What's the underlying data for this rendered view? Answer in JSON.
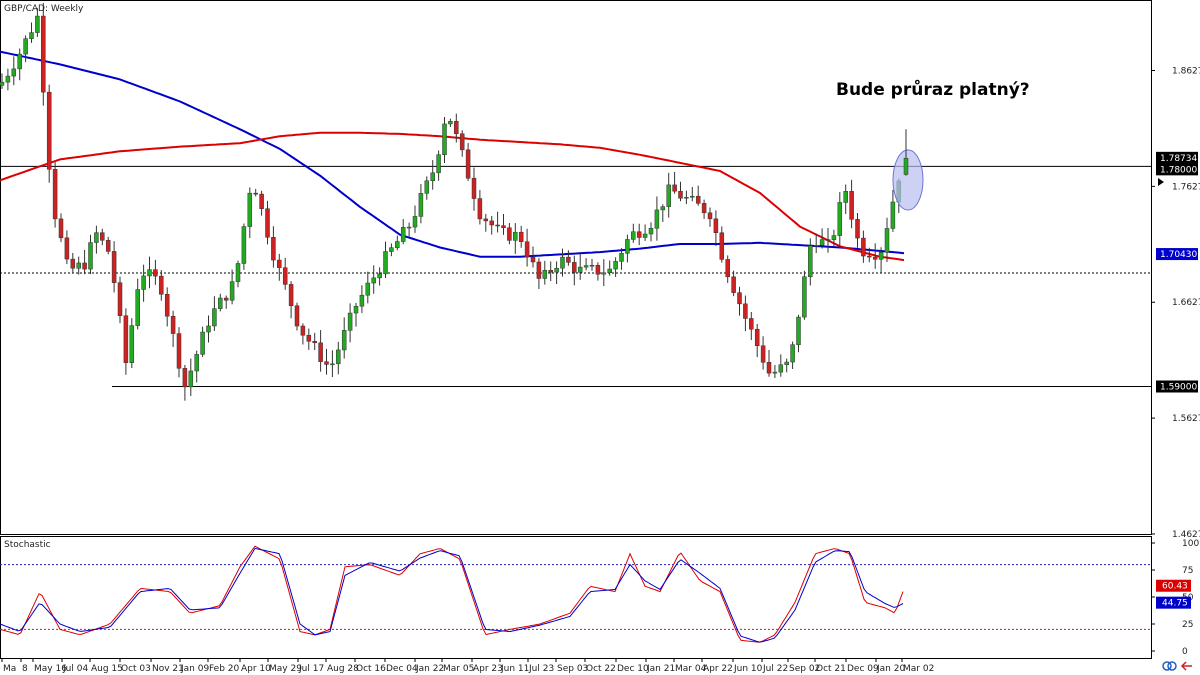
{
  "chart_data": [
    {
      "type": "candlestick",
      "title": "GBP/CAD: Weekly",
      "annotation": "Bude průraz platný?",
      "ylim": [
        1.4627,
        1.9227
      ],
      "y_ticks": [
        "1.86272",
        "1.76272",
        "1.66272",
        "1.56272",
        "1.46272"
      ],
      "x_ticks": [
        "Ma",
        "8",
        "May 16",
        "Jul 04",
        "Aug 15",
        "Oct 03",
        "Nov 21",
        "Jan 09",
        "Feb 20",
        "Apr 10",
        "May 29",
        "Jul 17",
        "Aug 28",
        "Oct 16",
        "Dec 04",
        "Jan 22",
        "Mar 05",
        "Apr 23",
        "Jun 11",
        "Jul 23",
        "Sep 03",
        "Oct 22",
        "Dec 10",
        "Jan 21",
        "Mar 04",
        "Apr 22",
        "Jun 10",
        "Jul 22",
        "Sep 02",
        "Oct 21",
        "Dec 09",
        "Jan 20",
        "Mar 02"
      ],
      "levels": [
        {
          "value": 1.78,
          "label": "1.78000",
          "style": "solid"
        },
        {
          "value": 1.688,
          "label": "",
          "style": "dotted"
        },
        {
          "value": 1.59,
          "label": "1.59000",
          "style": "solid"
        }
      ],
      "price_tags": [
        {
          "value": 1.78734,
          "label": "1.78734",
          "color": "#000000"
        },
        {
          "value": 1.78,
          "label": "1.78000",
          "color": "#000000"
        },
        {
          "value": 1.7043,
          "label": "1.70430",
          "color": "#0000cc"
        },
        {
          "value": 1.59,
          "label": "1.59000",
          "color": "#000000"
        }
      ],
      "series": [
        {
          "name": "",
          "color": "#0000cc",
          "anchors": [
            [
              0,
              1.879
            ],
            [
              60,
              1.868
            ],
            [
              120,
              1.855
            ],
            [
              180,
              1.836
            ],
            [
              240,
              1.812
            ],
            [
              280,
              1.795
            ],
            [
              320,
              1.772
            ],
            [
              360,
              1.745
            ],
            [
              400,
              1.721
            ],
            [
              440,
              1.71
            ],
            [
              480,
              1.702
            ],
            [
              520,
              1.702
            ],
            [
              560,
              1.704
            ],
            [
              600,
              1.706
            ],
            [
              640,
              1.709
            ],
            [
              680,
              1.713
            ],
            [
              720,
              1.713
            ],
            [
              760,
              1.714
            ],
            [
              800,
              1.712
            ],
            [
              840,
              1.71
            ],
            [
              880,
              1.707
            ],
            [
              905,
              1.705
            ]
          ]
        },
        {
          "name": "",
          "color": "#dd0000",
          "anchors": [
            [
              0,
              1.768
            ],
            [
              60,
              1.786
            ],
            [
              120,
              1.793
            ],
            [
              180,
              1.797
            ],
            [
              240,
              1.8
            ],
            [
              280,
              1.806
            ],
            [
              320,
              1.809
            ],
            [
              360,
              1.809
            ],
            [
              400,
              1.808
            ],
            [
              440,
              1.806
            ],
            [
              480,
              1.803
            ],
            [
              520,
              1.801
            ],
            [
              560,
              1.799
            ],
            [
              600,
              1.796
            ],
            [
              640,
              1.79
            ],
            [
              680,
              1.783
            ],
            [
              720,
              1.776
            ],
            [
              760,
              1.757
            ],
            [
              800,
              1.728
            ],
            [
              840,
              1.711
            ],
            [
              880,
              1.702
            ],
            [
              905,
              1.699
            ]
          ]
        }
      ],
      "candles": {
        "up_color": "#22aa22",
        "down_color": "#cc2222",
        "closes": [
          [
            0,
            1.85
          ],
          [
            18,
            1.875
          ],
          [
            38,
            1.91
          ],
          [
            52,
            1.75
          ],
          [
            68,
            1.69
          ],
          [
            84,
            1.695
          ],
          [
            96,
            1.722
          ],
          [
            110,
            1.705
          ],
          [
            126,
            1.61
          ],
          [
            140,
            1.69
          ],
          [
            160,
            1.68
          ],
          [
            185,
            1.59
          ],
          [
            210,
            1.65
          ],
          [
            235,
            1.68
          ],
          [
            252,
            1.772
          ],
          [
            275,
            1.7
          ],
          [
            300,
            1.64
          ],
          [
            330,
            1.605
          ],
          [
            356,
            1.66
          ],
          [
            385,
            1.7
          ],
          [
            410,
            1.73
          ],
          [
            435,
            1.78
          ],
          [
            447,
            1.83
          ],
          [
            462,
            1.79
          ],
          [
            480,
            1.74
          ],
          [
            500,
            1.722
          ],
          [
            520,
            1.72
          ],
          [
            540,
            1.68
          ],
          [
            560,
            1.7
          ],
          [
            580,
            1.69
          ],
          [
            610,
            1.69
          ],
          [
            630,
            1.72
          ],
          [
            650,
            1.73
          ],
          [
            670,
            1.76
          ],
          [
            690,
            1.75
          ],
          [
            710,
            1.74
          ],
          [
            725,
            1.695
          ],
          [
            745,
            1.65
          ],
          [
            770,
            1.6
          ],
          [
            790,
            1.61
          ],
          [
            812,
            1.72
          ],
          [
            830,
            1.71
          ],
          [
            845,
            1.762
          ],
          [
            860,
            1.708
          ],
          [
            880,
            1.705
          ],
          [
            890,
            1.74
          ],
          [
            903,
            1.787
          ]
        ]
      }
    },
    {
      "type": "line",
      "title": "Stochastic",
      "ylim": [
        0,
        100
      ],
      "y_ticks": [
        "100",
        "75",
        "50",
        "25",
        "0"
      ],
      "levels": [
        {
          "value": 80,
          "color": "#2222aa"
        },
        {
          "value": 20,
          "color": "#cc2222"
        }
      ],
      "price_tags": [
        {
          "value": 60.43,
          "label": "60.43",
          "color": "#dd0000"
        },
        {
          "value": 44.75,
          "label": "44.75",
          "color": "#0000cc"
        }
      ],
      "series": [
        {
          "name": "",
          "color": "#dd0000",
          "anchors": [
            [
              0,
              20
            ],
            [
              20,
              15
            ],
            [
              40,
              55
            ],
            [
              60,
              20
            ],
            [
              80,
              15
            ],
            [
              110,
              25
            ],
            [
              140,
              58
            ],
            [
              170,
              55
            ],
            [
              190,
              35
            ],
            [
              220,
              42
            ],
            [
              240,
              78
            ],
            [
              255,
              97
            ],
            [
              280,
              85
            ],
            [
              300,
              18
            ],
            [
              315,
              15
            ],
            [
              330,
              20
            ],
            [
              345,
              78
            ],
            [
              370,
              80
            ],
            [
              400,
              70
            ],
            [
              420,
              90
            ],
            [
              440,
              95
            ],
            [
              460,
              85
            ],
            [
              485,
              15
            ],
            [
              510,
              20
            ],
            [
              540,
              25
            ],
            [
              570,
              35
            ],
            [
              590,
              60
            ],
            [
              615,
              55
            ],
            [
              630,
              90
            ],
            [
              645,
              60
            ],
            [
              660,
              55
            ],
            [
              680,
              92
            ],
            [
              700,
              65
            ],
            [
              720,
              55
            ],
            [
              740,
              10
            ],
            [
              760,
              8
            ],
            [
              775,
              15
            ],
            [
              795,
              45
            ],
            [
              815,
              90
            ],
            [
              835,
              95
            ],
            [
              850,
              90
            ],
            [
              865,
              45
            ],
            [
              885,
              40
            ],
            [
              895,
              35
            ],
            [
              905,
              60
            ]
          ]
        },
        {
          "name": "",
          "color": "#0000cc",
          "anchors": [
            [
              0,
              25
            ],
            [
              20,
              18
            ],
            [
              40,
              45
            ],
            [
              60,
              25
            ],
            [
              80,
              18
            ],
            [
              110,
              22
            ],
            [
              140,
              55
            ],
            [
              170,
              58
            ],
            [
              190,
              38
            ],
            [
              220,
              40
            ],
            [
              240,
              72
            ],
            [
              255,
              95
            ],
            [
              280,
              90
            ],
            [
              300,
              25
            ],
            [
              315,
              15
            ],
            [
              330,
              18
            ],
            [
              345,
              70
            ],
            [
              370,
              82
            ],
            [
              400,
              74
            ],
            [
              420,
              86
            ],
            [
              440,
              93
            ],
            [
              460,
              88
            ],
            [
              485,
              20
            ],
            [
              510,
              18
            ],
            [
              540,
              24
            ],
            [
              570,
              32
            ],
            [
              590,
              55
            ],
            [
              615,
              57
            ],
            [
              630,
              80
            ],
            [
              645,
              65
            ],
            [
              660,
              57
            ],
            [
              680,
              85
            ],
            [
              700,
              72
            ],
            [
              720,
              58
            ],
            [
              740,
              14
            ],
            [
              760,
              8
            ],
            [
              775,
              12
            ],
            [
              795,
              38
            ],
            [
              815,
              82
            ],
            [
              835,
              93
            ],
            [
              850,
              92
            ],
            [
              865,
              55
            ],
            [
              885,
              44
            ],
            [
              895,
              40
            ],
            [
              905,
              45
            ]
          ]
        }
      ]
    }
  ]
}
